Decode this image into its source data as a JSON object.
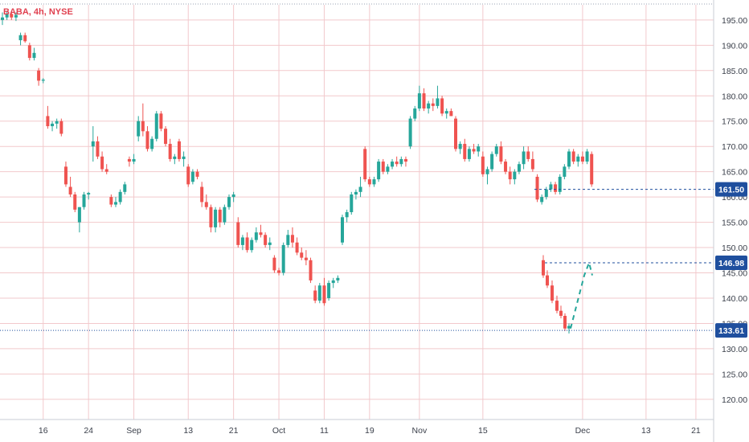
{
  "symbol_label": "BABA, 4h, NYSE",
  "colors": {
    "up": "#26a69a",
    "down": "#ef5350",
    "grid": "#f2c9cc",
    "badge": "#1f4f9e",
    "symbol": "#e0404f"
  },
  "chart_data": {
    "type": "candlestick",
    "title": "BABA, 4h, NYSE",
    "ylim": [
      116,
      198
    ],
    "y_ticks": [
      120.0,
      125.0,
      130.0,
      135.0,
      140.0,
      145.0,
      150.0,
      155.0,
      160.0,
      165.0,
      170.0,
      175.0,
      180.0,
      185.0,
      190.0,
      195.0
    ],
    "x_ticks": [
      "16",
      "24",
      "Sep",
      "13",
      "21",
      "Oct",
      "11",
      "19",
      "Nov",
      "15",
      "Dec",
      "13",
      "21"
    ],
    "x_tick_index": [
      9,
      19,
      29,
      41,
      51,
      61,
      71,
      81,
      92,
      106,
      128,
      142,
      153
    ],
    "x_count": 156,
    "grid": true,
    "price_badges": [
      "161.50",
      "146.98",
      "133.61"
    ],
    "price_badge_values": [
      161.5,
      146.98,
      133.61
    ],
    "projection": [
      [
        122,
        134.0
      ],
      [
        127,
        146.5
      ],
      [
        128,
        147.2
      ],
      [
        129,
        145.0
      ]
    ],
    "candles": [
      [
        0,
        195.0,
        196.5,
        194.0,
        195.5
      ],
      [
        1,
        195.5,
        196.8,
        195.0,
        196.2
      ],
      [
        2,
        196.2,
        196.8,
        195.0,
        195.5
      ],
      [
        3,
        195.5,
        196.5,
        194.8,
        196.0
      ],
      [
        4,
        191.0,
        192.5,
        190.0,
        192.0
      ],
      [
        5,
        192.0,
        192.5,
        190.5,
        190.8
      ],
      [
        6,
        190.0,
        190.5,
        187.0,
        187.5
      ],
      [
        7,
        187.5,
        189.5,
        187.0,
        188.5
      ],
      [
        8,
        185.0,
        185.5,
        182.0,
        183.0
      ],
      [
        9,
        183.0,
        183.5,
        182.5,
        183.2
      ],
      [
        10,
        176.0,
        178.0,
        173.5,
        174.0
      ],
      [
        11,
        174.0,
        175.0,
        173.0,
        174.5
      ],
      [
        12,
        174.5,
        175.5,
        173.5,
        175.0
      ],
      [
        13,
        175.0,
        175.5,
        172.0,
        172.5
      ],
      [
        14,
        166.0,
        167.0,
        162.0,
        162.5
      ],
      [
        15,
        162.0,
        164.0,
        160.0,
        160.5
      ],
      [
        16,
        160.5,
        161.0,
        157.0,
        157.5
      ],
      [
        17,
        155.0,
        158.0,
        153.0,
        158.0
      ],
      [
        18,
        158.0,
        161.0,
        157.5,
        160.5
      ],
      [
        19,
        160.5,
        161.0,
        159.5,
        160.8
      ],
      [
        20,
        170.0,
        174.0,
        167.0,
        171.0
      ],
      [
        21,
        171.0,
        172.0,
        167.5,
        168.0
      ],
      [
        22,
        168.0,
        169.0,
        165.0,
        165.5
      ],
      [
        23,
        165.5,
        166.5,
        164.5,
        165.0
      ],
      [
        24,
        160.0,
        160.5,
        158.0,
        158.5
      ],
      [
        25,
        158.5,
        160.0,
        158.0,
        159.0
      ],
      [
        26,
        159.0,
        161.5,
        158.5,
        161.0
      ],
      [
        27,
        161.0,
        163.0,
        160.5,
        162.5
      ],
      [
        28,
        167.5,
        168.0,
        166.0,
        167.0
      ],
      [
        29,
        167.0,
        168.5,
        166.5,
        167.5
      ],
      [
        30,
        172.0,
        176.0,
        171.0,
        175.0
      ],
      [
        31,
        175.0,
        178.5,
        172.0,
        173.0
      ],
      [
        32,
        173.0,
        174.0,
        169.0,
        169.5
      ],
      [
        33,
        169.5,
        172.0,
        169.0,
        171.5
      ],
      [
        34,
        171.5,
        177.0,
        171.0,
        176.5
      ],
      [
        35,
        176.5,
        177.0,
        173.0,
        173.5
      ],
      [
        36,
        173.5,
        174.0,
        170.0,
        170.5
      ],
      [
        37,
        170.5,
        171.5,
        167.0,
        167.5
      ],
      [
        38,
        167.5,
        168.5,
        166.5,
        168.0
      ],
      [
        39,
        171.0,
        171.5,
        167.0,
        167.5
      ],
      [
        40,
        167.5,
        169.0,
        166.0,
        168.0
      ],
      [
        41,
        166.0,
        166.5,
        162.0,
        162.5
      ],
      [
        42,
        163.0,
        165.5,
        162.5,
        165.0
      ],
      [
        43,
        165.0,
        165.5,
        163.5,
        164.0
      ],
      [
        44,
        162.0,
        163.0,
        158.0,
        159.0
      ],
      [
        45,
        159.0,
        160.5,
        157.5,
        158.0
      ],
      [
        46,
        158.0,
        158.5,
        153.0,
        154.0
      ],
      [
        47,
        154.0,
        158.0,
        153.0,
        157.5
      ],
      [
        48,
        157.5,
        158.0,
        154.0,
        155.0
      ],
      [
        49,
        155.0,
        158.5,
        154.5,
        158.0
      ],
      [
        50,
        158.0,
        160.5,
        157.5,
        160.0
      ],
      [
        51,
        160.0,
        161.0,
        159.0,
        160.5
      ],
      [
        52,
        155.0,
        156.0,
        150.0,
        150.5
      ],
      [
        53,
        150.5,
        152.5,
        149.5,
        152.0
      ],
      [
        54,
        152.0,
        153.0,
        149.0,
        149.5
      ],
      [
        55,
        149.5,
        152.0,
        149.0,
        151.5
      ],
      [
        56,
        151.5,
        154.0,
        151.0,
        153.0
      ],
      [
        57,
        153.0,
        154.5,
        152.0,
        152.5
      ],
      [
        58,
        152.5,
        153.0,
        150.0,
        150.5
      ],
      [
        59,
        150.5,
        152.0,
        149.5,
        151.0
      ],
      [
        60,
        148.0,
        148.5,
        145.0,
        145.5
      ],
      [
        61,
        145.5,
        146.0,
        144.5,
        145.0
      ],
      [
        62,
        145.0,
        151.0,
        144.5,
        150.5
      ],
      [
        63,
        150.5,
        153.5,
        150.0,
        152.5
      ],
      [
        64,
        152.5,
        154.0,
        150.0,
        151.0
      ],
      [
        65,
        151.0,
        152.0,
        148.5,
        149.0
      ],
      [
        66,
        149.0,
        150.0,
        147.5,
        148.0
      ],
      [
        67,
        148.0,
        149.5,
        146.5,
        147.5
      ],
      [
        68,
        147.5,
        148.0,
        143.0,
        143.5
      ],
      [
        69,
        141.5,
        142.5,
        139.0,
        139.5
      ],
      [
        70,
        139.5,
        143.0,
        139.0,
        142.5
      ],
      [
        71,
        142.5,
        144.0,
        138.5,
        139.0
      ],
      [
        72,
        140.0,
        143.5,
        139.5,
        143.0
      ],
      [
        73,
        143.0,
        144.0,
        142.0,
        143.5
      ],
      [
        74,
        143.5,
        144.5,
        143.0,
        144.0
      ],
      [
        75,
        151.0,
        156.5,
        150.5,
        156.0
      ],
      [
        76,
        156.0,
        157.5,
        155.0,
        157.0
      ],
      [
        77,
        157.0,
        161.0,
        156.5,
        160.5
      ],
      [
        78,
        160.5,
        161.5,
        159.5,
        161.0
      ],
      [
        79,
        161.0,
        164.0,
        160.0,
        162.0
      ],
      [
        80,
        169.5,
        170.0,
        163.0,
        163.5
      ],
      [
        81,
        163.5,
        164.0,
        162.0,
        162.5
      ],
      [
        82,
        162.5,
        164.0,
        162.0,
        163.5
      ],
      [
        83,
        163.5,
        167.5,
        163.0,
        167.0
      ],
      [
        84,
        167.0,
        167.5,
        164.5,
        165.0
      ],
      [
        85,
        165.0,
        166.5,
        164.5,
        166.0
      ],
      [
        86,
        166.0,
        167.5,
        165.5,
        167.0
      ],
      [
        87,
        167.0,
        168.0,
        166.0,
        166.5
      ],
      [
        88,
        166.5,
        168.0,
        166.0,
        167.5
      ],
      [
        89,
        167.5,
        168.0,
        166.0,
        167.0
      ],
      [
        90,
        170.0,
        176.0,
        169.5,
        175.5
      ],
      [
        91,
        175.5,
        178.0,
        175.0,
        177.5
      ],
      [
        92,
        177.5,
        182.0,
        177.0,
        180.5
      ],
      [
        93,
        180.5,
        181.5,
        177.0,
        177.5
      ],
      [
        94,
        177.5,
        179.0,
        176.5,
        178.5
      ],
      [
        95,
        178.5,
        179.5,
        177.0,
        178.0
      ],
      [
        96,
        178.0,
        182.0,
        177.5,
        179.5
      ],
      [
        97,
        179.5,
        180.0,
        176.0,
        176.5
      ],
      [
        98,
        176.5,
        177.5,
        175.5,
        177.0
      ],
      [
        99,
        177.0,
        177.5,
        176.0,
        176.0
      ],
      [
        100,
        175.5,
        176.0,
        169.0,
        169.5
      ],
      [
        101,
        169.5,
        171.0,
        168.5,
        170.5
      ],
      [
        102,
        170.5,
        171.5,
        167.0,
        167.5
      ],
      [
        103,
        167.5,
        170.0,
        167.0,
        169.5
      ],
      [
        104,
        169.5,
        170.5,
        168.5,
        169.0
      ],
      [
        105,
        169.0,
        170.5,
        168.0,
        170.0
      ],
      [
        106,
        168.0,
        169.0,
        164.0,
        164.5
      ],
      [
        107,
        164.5,
        166.0,
        162.5,
        165.5
      ],
      [
        108,
        165.5,
        169.0,
        165.0,
        168.5
      ],
      [
        109,
        168.5,
        170.5,
        168.0,
        170.0
      ],
      [
        110,
        170.0,
        171.0,
        166.5,
        167.0
      ],
      [
        111,
        167.0,
        167.5,
        164.5,
        165.0
      ],
      [
        112,
        165.0,
        166.0,
        162.5,
        163.5
      ],
      [
        113,
        163.5,
        165.5,
        162.5,
        165.0
      ],
      [
        114,
        165.0,
        167.0,
        164.5,
        166.5
      ],
      [
        115,
        166.5,
        170.0,
        165.5,
        169.0
      ],
      [
        116,
        169.0,
        170.0,
        167.0,
        167.5
      ],
      [
        117,
        167.5,
        169.0,
        165.0,
        165.5
      ],
      [
        118,
        164.0,
        164.5,
        159.0,
        159.5
      ],
      [
        119,
        159.0,
        160.5,
        158.5,
        160.0
      ],
      [
        120,
        160.0,
        162.0,
        159.5,
        161.5
      ],
      [
        121,
        161.5,
        163.0,
        161.0,
        162.5
      ],
      [
        122,
        162.5,
        163.0,
        160.5,
        161.0
      ],
      [
        123,
        161.0,
        164.5,
        160.5,
        164.0
      ],
      [
        124,
        164.0,
        166.5,
        163.5,
        166.0
      ],
      [
        125,
        166.0,
        169.5,
        165.5,
        169.0
      ],
      [
        126,
        169.0,
        169.5,
        166.5,
        167.0
      ],
      [
        127,
        167.0,
        168.5,
        166.0,
        168.0
      ],
      [
        128,
        168.0,
        169.0,
        166.5,
        167.0
      ],
      [
        129,
        167.0,
        169.5,
        166.5,
        169.0
      ],
      [
        130,
        168.5,
        169.0,
        162.0,
        162.5
      ]
    ]
  }
}
